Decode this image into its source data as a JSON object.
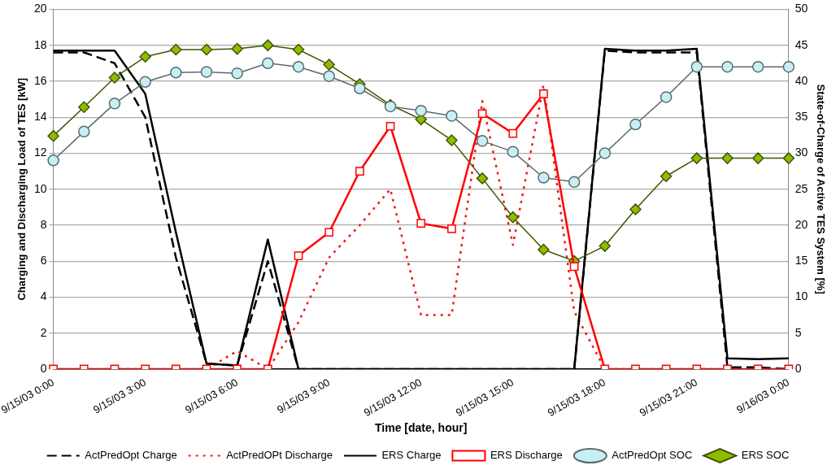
{
  "chart_data": {
    "type": "line",
    "xlabel": "Time [date, hour]",
    "ylabel": "Charging and Discharging Load of TES [kW]",
    "y2label": "State-of-Charge of Active TES System [%]",
    "categories": [
      "9/15/03 0:00",
      null,
      null,
      "9/15/03 3:00",
      null,
      null,
      "9/15/03 6:00",
      null,
      null,
      "9/15/03 9:00",
      null,
      null,
      "9/15/03 12:00",
      null,
      null,
      "9/15/03 15:00",
      null,
      null,
      "9/15/03 18:00",
      null,
      null,
      "9/15/03 21:00",
      null,
      null,
      "9/16/03 0:00"
    ],
    "ylim": [
      0,
      20
    ],
    "yticks": [
      0,
      2,
      4,
      6,
      8,
      10,
      12,
      14,
      16,
      18,
      20
    ],
    "y2lim": [
      0,
      50
    ],
    "y2ticks": [
      0,
      5,
      10,
      15,
      20,
      25,
      30,
      35,
      40,
      45,
      50
    ],
    "grid": "y",
    "legend": "bottom",
    "series": [
      {
        "name": "ActPredOpt Charge",
        "color": "#000000",
        "line_style": "dashed",
        "marker": "none",
        "values": [
          17.6,
          17.6,
          17.0,
          14.0,
          6.2,
          0.3,
          0.2,
          6.0,
          0,
          0,
          0,
          0,
          0,
          0,
          0,
          0,
          0,
          0,
          17.7,
          17.6,
          17.6,
          17.6,
          0.1,
          0.1,
          0
        ]
      },
      {
        "name": "ActPredOPt Discharge",
        "color": "#f01818",
        "line_style": "dotted",
        "marker": "none",
        "values": [
          0,
          0,
          0,
          0,
          0,
          0,
          1.0,
          0,
          2.6,
          6.2,
          8.0,
          10.0,
          3.0,
          3.0,
          14.9,
          6.9,
          15.8,
          3.2,
          0,
          0,
          0,
          0,
          0,
          0,
          0
        ]
      },
      {
        "name": "ERS Charge",
        "color": "#000000",
        "line_style": "solid",
        "marker": "none",
        "values": [
          17.7,
          17.7,
          17.7,
          15.3,
          7.6,
          0.3,
          0.2,
          7.2,
          0,
          0,
          0,
          0,
          0,
          0,
          0,
          0,
          0,
          0,
          17.8,
          17.7,
          17.7,
          17.8,
          0.6,
          0.55,
          0.6
        ]
      },
      {
        "name": "ERS Discharge",
        "color": "#ff0000",
        "line_style": "solid",
        "marker": "square",
        "values": [
          0,
          0,
          0,
          0,
          0,
          0,
          0,
          0,
          6.3,
          7.6,
          11.0,
          13.5,
          8.1,
          7.8,
          14.2,
          13.1,
          15.3,
          5.7,
          0,
          0,
          0,
          0,
          0,
          0,
          0
        ]
      },
      {
        "name": "ActPredOpt SOC",
        "color": "#c8f0f4",
        "line_style": "solid",
        "marker": "circle",
        "axis": "y2",
        "values": [
          29.0,
          33.0,
          36.9,
          39.9,
          41.2,
          41.3,
          41.1,
          42.5,
          42.0,
          40.7,
          39.0,
          36.5,
          35.9,
          35.2,
          31.7,
          30.2,
          26.6,
          26.0,
          30.0,
          34.0,
          37.8,
          42.0,
          42.0,
          42.0,
          42.0
        ]
      },
      {
        "name": "ERS SOC",
        "color": "#8fbc00",
        "line_style": "solid",
        "marker": "diamond",
        "axis": "y2",
        "values": [
          32.4,
          36.4,
          40.5,
          43.4,
          44.4,
          44.4,
          44.5,
          45.0,
          44.4,
          42.3,
          39.6,
          36.7,
          34.7,
          31.8,
          26.5,
          21.1,
          16.6,
          15.0,
          17.1,
          22.2,
          26.8,
          29.3,
          29.3,
          29.3,
          29.3
        ]
      }
    ]
  }
}
